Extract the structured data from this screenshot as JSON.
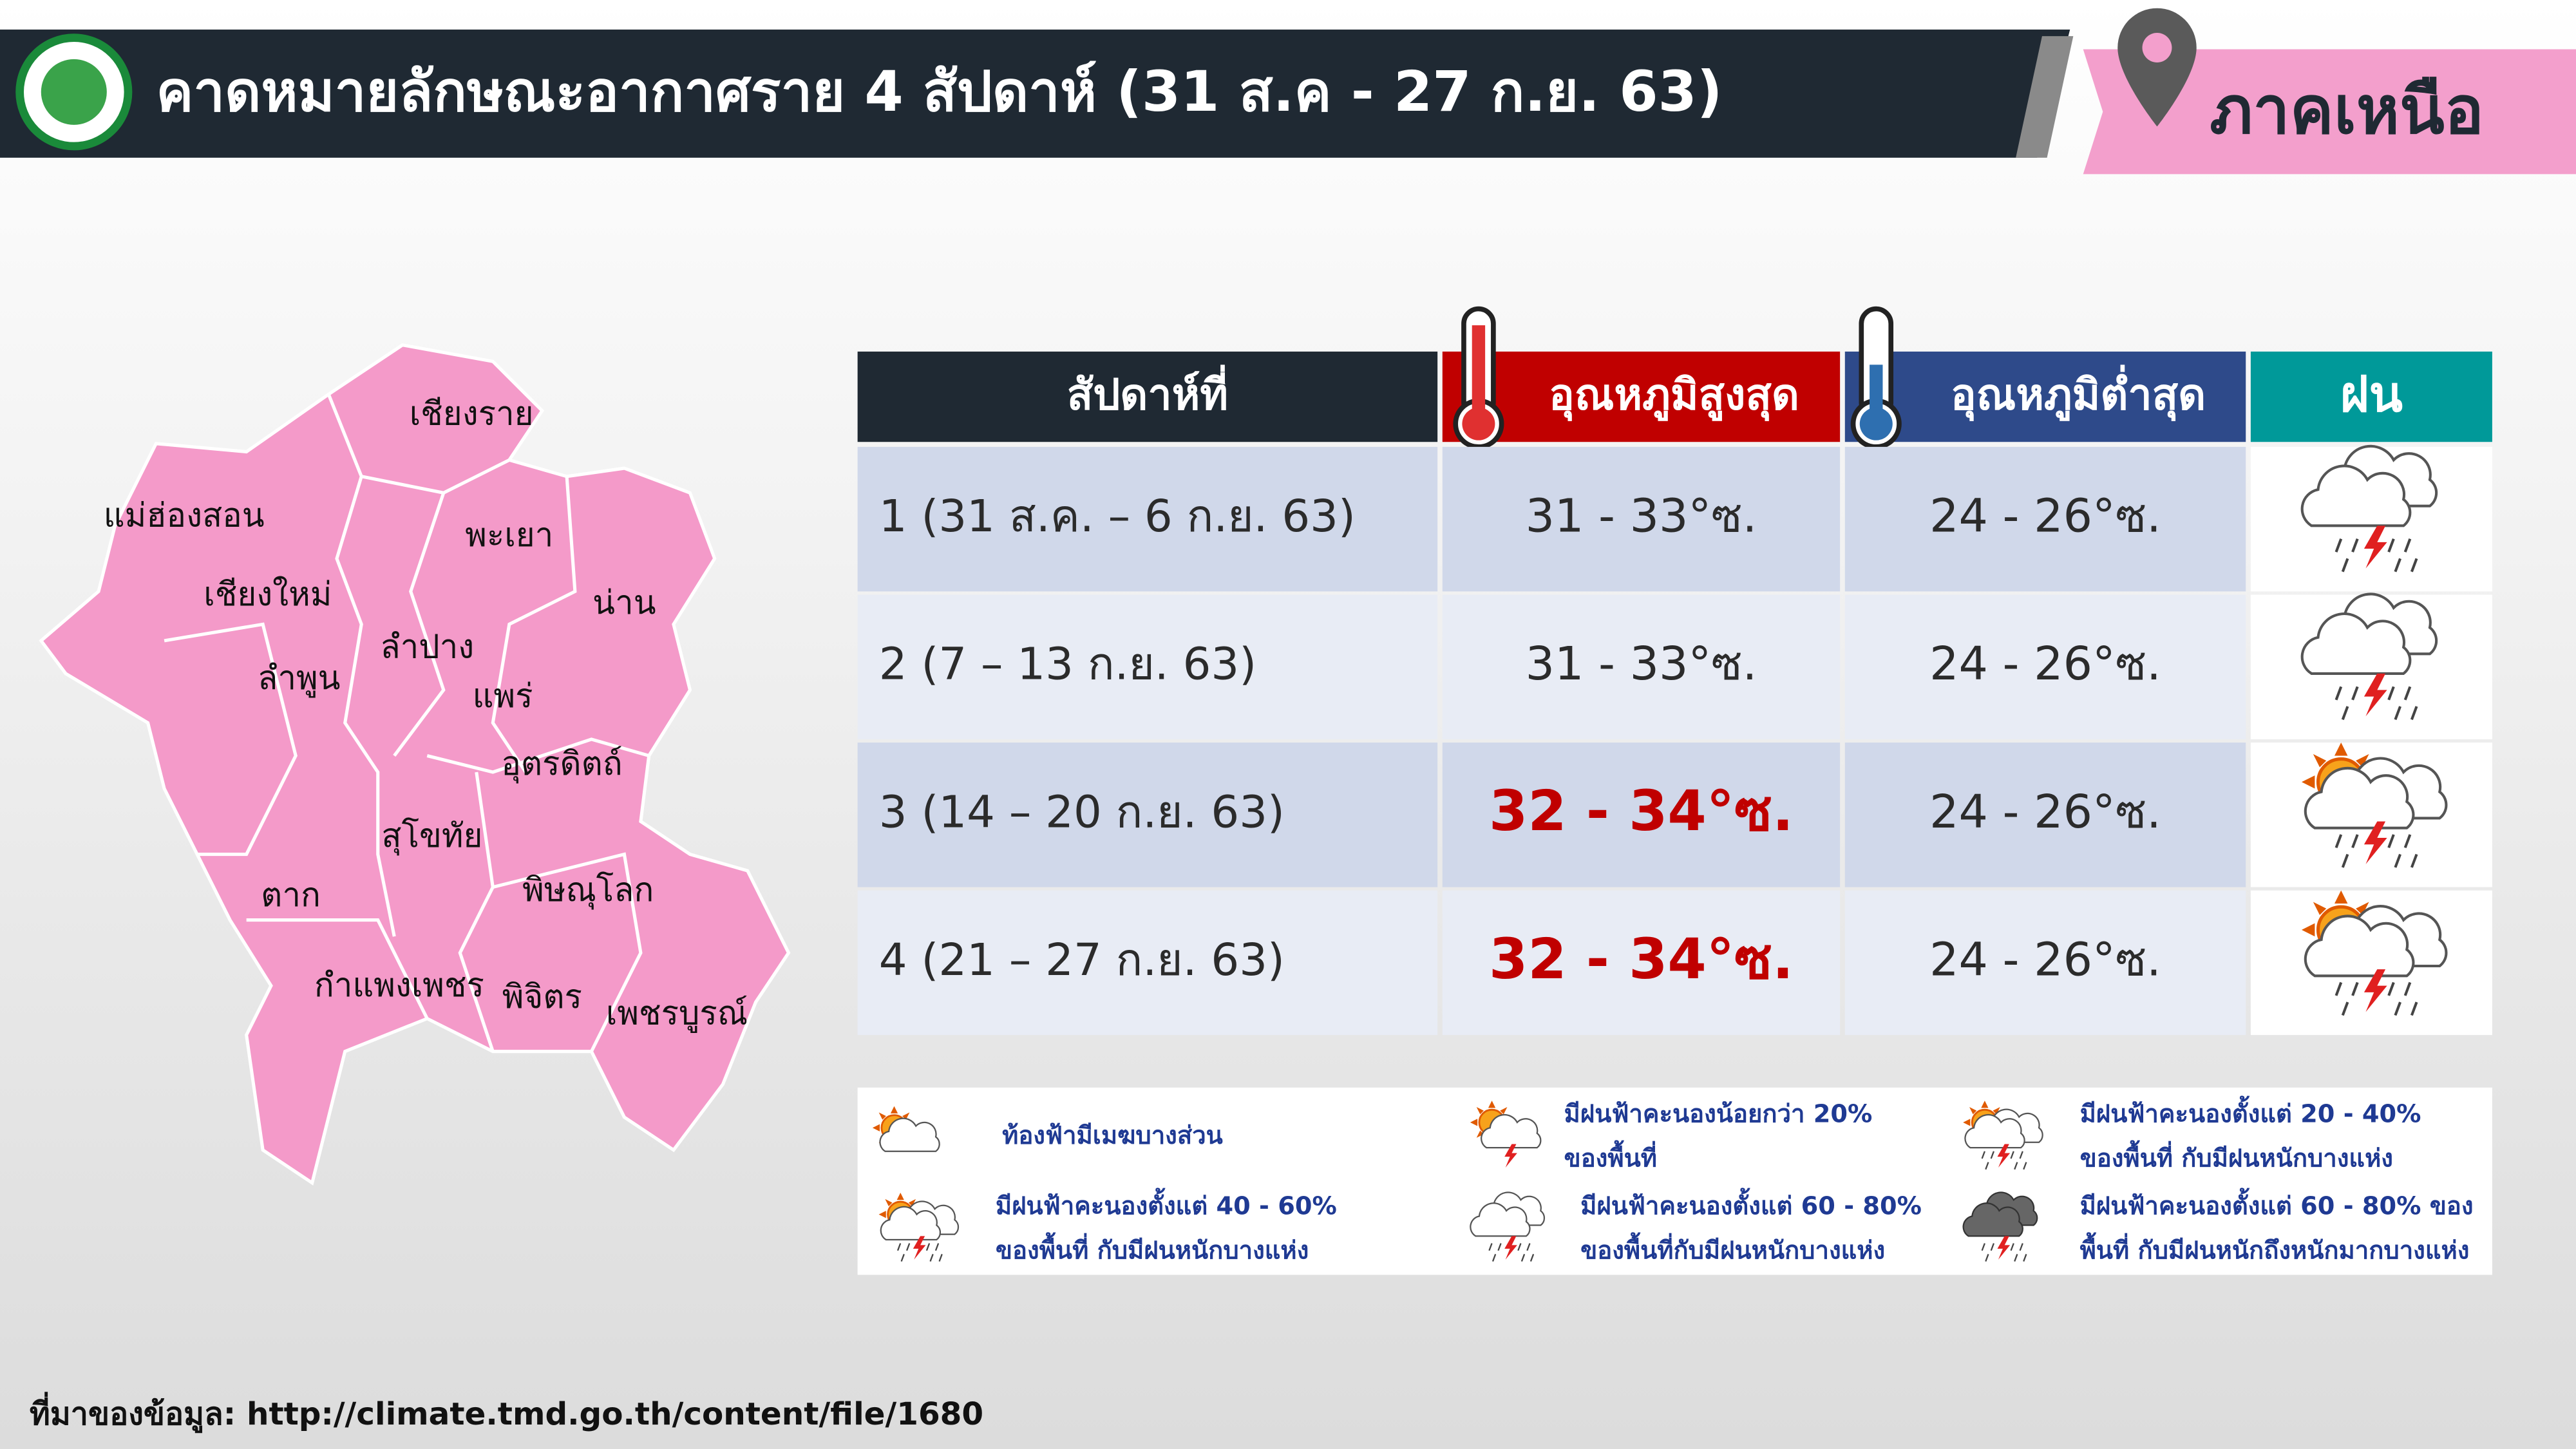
{
  "header": {
    "title": "คาดหมายลักษณะอากาศราย 4 สัปดาห์ (31 ส.ค - 27 ก.ย. 63)",
    "region": "ภาคเหนือ"
  },
  "map": {
    "provinces": [
      "แม่ฮ่องสอน",
      "เชียงราย",
      "พะเยา",
      "เชียงใหม่",
      "น่าน",
      "ลำปาง",
      "ลำพูน",
      "แพร่",
      "อุตรดิตถ์",
      "สุโขทัย",
      "ตาก",
      "พิษณุโลก",
      "กำแพงเพชร",
      "พิจิตร",
      "เพชรบูรณ์"
    ]
  },
  "table": {
    "headers": [
      "สัปดาห์ที่",
      "อุณหภูมิสูงสุด",
      "อุณหภูมิต่ำสุด",
      "ฝน"
    ],
    "rows": [
      {
        "week": "1 (31 ส.ค. – 6 ก.ย. 63)",
        "max": "31 - 33°ซ.",
        "min": "24 - 26°ซ.",
        "max_color": "#2b2b2b"
      },
      {
        "week": "2 (7 – 13 ก.ย. 63)",
        "max": "31 - 33°ซ.",
        "min": "24 - 26°ซ.",
        "max_color": "#2b2b2b"
      },
      {
        "week": "3 (14 – 20 ก.ย. 63)",
        "max": "32 - 34°ซ.",
        "min": "24 - 26°ซ.",
        "max_color": "#c00000"
      },
      {
        "week": "4 (21 – 27 ก.ย. 63)",
        "max": "32 - 34°ซ.",
        "min": "24 - 26°ซ.",
        "max_color": "#c00000"
      }
    ]
  },
  "legend": {
    "items": [
      {
        "lines": [
          "ท้องฟ้ามีเมฆบางส่วน"
        ]
      },
      {
        "lines": [
          "มีฝนฟ้าคะนองน้อยกว่า 20%",
          "ของพื้นที่"
        ]
      },
      {
        "lines": [
          "มีฝนฟ้าคะนองตั้งแต่ 20 - 40%",
          "ของพื้นที่ กับมีฝนหนักบางแห่ง"
        ]
      },
      {
        "lines": [
          "มีฝนฟ้าคะนองตั้งแต่ 40 - 60%",
          "ของพื้นที่ กับมีฝนหนักบางแห่ง"
        ]
      },
      {
        "lines": [
          "มีฝนฟ้าคะนองตั้งแต่ 60 - 80%",
          "ของพื้นที่กับมีฝนหนักบางแห่ง"
        ]
      },
      {
        "lines": [
          "มีฝนฟ้าคะนองตั้งแต่ 60 - 80% ของ",
          "พื้นที่ กับมีฝนหนักถึงหนักมากบางแห่ง"
        ]
      }
    ]
  },
  "source": "ที่มาของข้อมูล: http://climate.tmd.go.th/content/file/1680"
}
